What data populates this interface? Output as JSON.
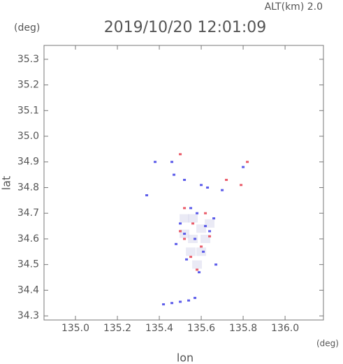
{
  "chart_data": {
    "type": "scatter",
    "top_label": "ALT(km) 2.0",
    "y_unit": "(deg)",
    "title": "2019/10/20 12:01:09",
    "y_label": "lat",
    "x_unit": "(deg)",
    "x_label": "lon",
    "xlim": [
      134.85,
      136.183
    ],
    "ylim": [
      34.284,
      35.354
    ],
    "xticks": [
      {
        "value": 135,
        "label": "135.0"
      },
      135.2,
      135.4,
      135.6,
      135.8,
      {
        "value": 136,
        "label": "136.0"
      }
    ],
    "yticks": [
      34.3,
      34.4,
      34.5,
      34.6,
      34.7,
      34.8,
      34.9,
      {
        "value": 35,
        "label": "35.0"
      },
      35.1,
      35.2,
      35.3
    ],
    "series": [
      {
        "color": "#dcdcee",
        "x": [
          135.52,
          135.56,
          135.6,
          135.64,
          135.55,
          135.6,
          135.58,
          135.52,
          135.56,
          135.62
        ],
        "y": [
          34.62,
          34.6,
          34.64,
          34.66,
          34.55,
          34.55,
          34.5,
          34.68,
          34.68,
          34.6
        ]
      },
      {
        "color": "#4a4ae8",
        "x": [
          135.42,
          135.46,
          135.5,
          135.54,
          135.57,
          135.47,
          135.52,
          135.6,
          135.63,
          135.55,
          135.58,
          135.66,
          135.5,
          135.62,
          135.57,
          135.48,
          135.53,
          135.61,
          135.64,
          135.8,
          135.7,
          135.34,
          135.38,
          135.46,
          135.67,
          135.59,
          135.52
        ],
        "y": [
          34.345,
          34.35,
          34.355,
          34.36,
          34.37,
          34.85,
          34.83,
          34.81,
          34.8,
          34.72,
          34.7,
          34.68,
          34.66,
          34.65,
          34.6,
          34.58,
          34.52,
          34.55,
          34.63,
          34.88,
          34.79,
          34.77,
          34.9,
          34.9,
          34.5,
          34.47,
          34.62
        ]
      },
      {
        "color": "#e84a5a",
        "x": [
          135.5,
          135.52,
          135.56,
          135.6,
          135.64,
          135.55,
          135.5,
          135.62,
          135.79,
          135.82,
          135.72,
          135.52,
          135.58
        ],
        "y": [
          34.93,
          34.72,
          34.66,
          34.57,
          34.61,
          34.53,
          34.63,
          34.7,
          34.81,
          34.9,
          34.83,
          34.6,
          34.48
        ]
      }
    ]
  }
}
